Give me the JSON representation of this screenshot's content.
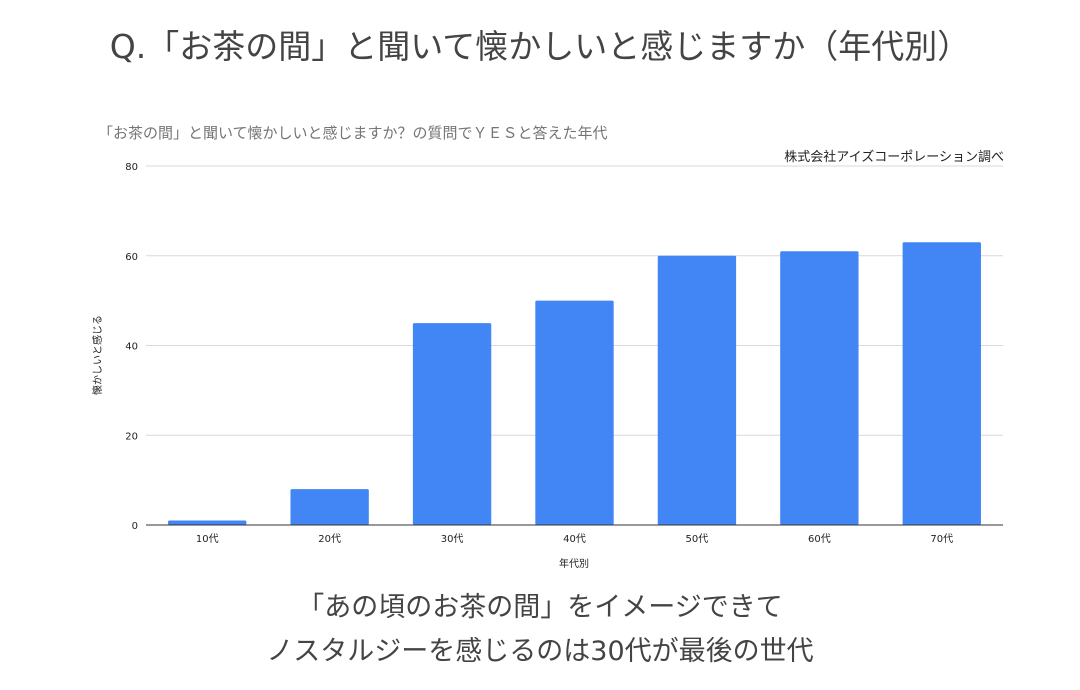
{
  "page": {
    "title": "Q.「お茶の間」と聞いて懐かしいと感じますか（年代別）",
    "conclusion_line1": "「あの頃のお茶の間」をイメージできて",
    "conclusion_line2": "ノスタルジーを感じるのは30代が最後の世代"
  },
  "chart_data": {
    "type": "bar",
    "title": "「お茶の間」と聞いて懐かしいと感じますか？の質問でＹＥＳと答えた年代",
    "subtitle": "株式会社アイズコーポレーション調べ",
    "xlabel": "年代別",
    "ylabel": "懐かしいと感じる",
    "categories": [
      "10代",
      "20代",
      "30代",
      "40代",
      "50代",
      "60代",
      "70代"
    ],
    "values": [
      1,
      8,
      45,
      50,
      60,
      61,
      63
    ],
    "ylim": [
      0,
      80
    ],
    "yticks": [
      "0",
      "20",
      "40",
      "60",
      "80"
    ],
    "grid": true,
    "legend": "none",
    "bar_color": "#4285f4",
    "grid_color": "#d9d9d9",
    "axis_color": "#333333"
  }
}
